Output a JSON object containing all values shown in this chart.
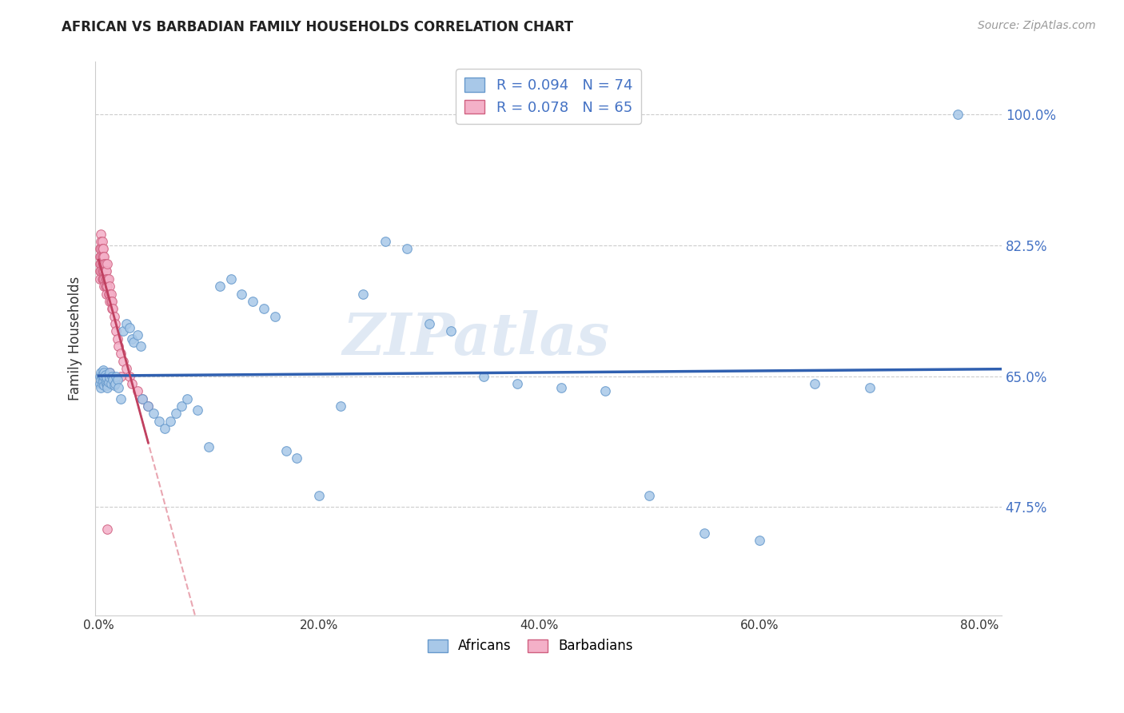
{
  "title": "AFRICAN VS BARBADIAN FAMILY HOUSEHOLDS CORRELATION CHART",
  "source": "Source: ZipAtlas.com",
  "ylabel_label": "Family Households",
  "xlim": [
    -0.003,
    0.82
  ],
  "ylim": [
    0.33,
    1.07
  ],
  "xtick_vals": [
    0.0,
    0.2,
    0.4,
    0.6,
    0.8
  ],
  "xtick_labels": [
    "0.0%",
    "20.0%",
    "40.0%",
    "60.0%",
    "80.0%"
  ],
  "ytick_vals": [
    0.475,
    0.65,
    0.825,
    1.0
  ],
  "ytick_labels": [
    "47.5%",
    "65.0%",
    "82.5%",
    "100.0%"
  ],
  "legend_top": [
    "R = 0.094   N = 74",
    "R = 0.078   N = 65"
  ],
  "legend_bottom": [
    "Africans",
    "Barbadians"
  ],
  "watermark": "ZIPatlas",
  "african_color": "#a8c8e8",
  "african_edge": "#6699cc",
  "barbadian_color": "#f4b0c8",
  "barbadian_edge": "#d06080",
  "trend_african_color": "#3060b0",
  "trend_barbadian_solid_color": "#c04060",
  "trend_barbadian_dash_color": "#e08090",
  "R_african": 0.094,
  "R_barbadian": 0.078,
  "N_african": 74,
  "N_barbadian": 65,
  "marker_size": 70,
  "african_x": [
    0.001,
    0.001,
    0.002,
    0.002,
    0.002,
    0.003,
    0.003,
    0.003,
    0.004,
    0.004,
    0.005,
    0.005,
    0.005,
    0.006,
    0.006,
    0.007,
    0.007,
    0.008,
    0.008,
    0.009,
    0.01,
    0.01,
    0.011,
    0.012,
    0.013,
    0.014,
    0.015,
    0.016,
    0.017,
    0.018,
    0.02,
    0.022,
    0.025,
    0.028,
    0.03,
    0.032,
    0.035,
    0.038,
    0.04,
    0.045,
    0.05,
    0.055,
    0.06,
    0.065,
    0.07,
    0.075,
    0.08,
    0.09,
    0.1,
    0.11,
    0.12,
    0.13,
    0.14,
    0.15,
    0.16,
    0.17,
    0.18,
    0.2,
    0.22,
    0.24,
    0.26,
    0.28,
    0.3,
    0.32,
    0.35,
    0.38,
    0.42,
    0.46,
    0.5,
    0.55,
    0.6,
    0.65,
    0.7,
    0.78
  ],
  "african_y": [
    0.64,
    0.65,
    0.645,
    0.655,
    0.635,
    0.648,
    0.652,
    0.64,
    0.643,
    0.658,
    0.638,
    0.65,
    0.655,
    0.643,
    0.652,
    0.64,
    0.648,
    0.638,
    0.635,
    0.642,
    0.648,
    0.655,
    0.64,
    0.65,
    0.645,
    0.638,
    0.64,
    0.65,
    0.645,
    0.635,
    0.62,
    0.71,
    0.72,
    0.715,
    0.7,
    0.695,
    0.705,
    0.69,
    0.62,
    0.61,
    0.6,
    0.59,
    0.58,
    0.59,
    0.6,
    0.61,
    0.62,
    0.605,
    0.555,
    0.77,
    0.78,
    0.76,
    0.75,
    0.74,
    0.73,
    0.55,
    0.54,
    0.49,
    0.61,
    0.76,
    0.83,
    0.82,
    0.72,
    0.71,
    0.65,
    0.64,
    0.635,
    0.63,
    0.49,
    0.44,
    0.43,
    0.64,
    0.635,
    1.0
  ],
  "barbadian_x": [
    0.001,
    0.001,
    0.001,
    0.001,
    0.001,
    0.002,
    0.002,
    0.002,
    0.002,
    0.002,
    0.002,
    0.003,
    0.003,
    0.003,
    0.003,
    0.003,
    0.003,
    0.004,
    0.004,
    0.004,
    0.004,
    0.004,
    0.005,
    0.005,
    0.005,
    0.005,
    0.005,
    0.006,
    0.006,
    0.006,
    0.006,
    0.007,
    0.007,
    0.007,
    0.007,
    0.008,
    0.008,
    0.008,
    0.009,
    0.009,
    0.01,
    0.01,
    0.01,
    0.011,
    0.011,
    0.012,
    0.012,
    0.013,
    0.014,
    0.015,
    0.016,
    0.017,
    0.018,
    0.02,
    0.022,
    0.025,
    0.028,
    0.03,
    0.035,
    0.04,
    0.045,
    0.02,
    0.01,
    0.008,
    0.006
  ],
  "barbadian_y": [
    0.82,
    0.81,
    0.8,
    0.79,
    0.78,
    0.84,
    0.83,
    0.82,
    0.81,
    0.8,
    0.79,
    0.83,
    0.82,
    0.81,
    0.8,
    0.79,
    0.78,
    0.82,
    0.81,
    0.8,
    0.79,
    0.78,
    0.81,
    0.8,
    0.79,
    0.78,
    0.77,
    0.8,
    0.79,
    0.78,
    0.77,
    0.79,
    0.78,
    0.77,
    0.76,
    0.8,
    0.78,
    0.77,
    0.78,
    0.76,
    0.77,
    0.76,
    0.75,
    0.76,
    0.75,
    0.75,
    0.74,
    0.74,
    0.73,
    0.72,
    0.71,
    0.7,
    0.69,
    0.68,
    0.67,
    0.66,
    0.65,
    0.64,
    0.63,
    0.62,
    0.61,
    0.65,
    0.655,
    0.445,
    0.64
  ]
}
